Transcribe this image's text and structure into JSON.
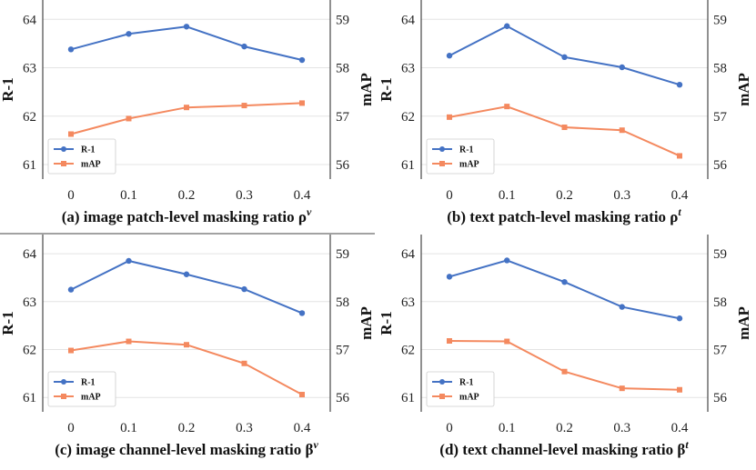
{
  "colors": {
    "r1": "#4472c4",
    "map": "#f4895f",
    "grid": "#e4e4e4",
    "frame": "#222222"
  },
  "chart_data": [
    {
      "type": "line",
      "caption": "(a) image patch-level masking ratio ρ",
      "caption_sup": "v",
      "xlabel": "",
      "y1label": "R-1",
      "y2label": "mAP",
      "categories": [
        "0",
        "0.1",
        "0.2",
        "0.3",
        "0.4"
      ],
      "y1lim": [
        60.7,
        64.4
      ],
      "y2lim": [
        55.7,
        59.4
      ],
      "y1ticks": [
        "61",
        "62",
        "63",
        "64"
      ],
      "y2ticks": [
        "56",
        "57",
        "58",
        "59"
      ],
      "legend": "bottom-left",
      "series": [
        {
          "name": "R-1",
          "axis": "left",
          "values": [
            63.38,
            63.7,
            63.85,
            63.44,
            63.16
          ]
        },
        {
          "name": "mAP",
          "axis": "right",
          "values": [
            56.63,
            56.95,
            57.18,
            57.22,
            57.27
          ]
        }
      ]
    },
    {
      "type": "line",
      "caption": "(b) text patch-level masking ratio ρ",
      "caption_sup": "t",
      "xlabel": "",
      "y1label": "R-1",
      "y2label": "mAP",
      "categories": [
        "0",
        "0.1",
        "0.2",
        "0.3",
        "0.4"
      ],
      "y1lim": [
        60.7,
        64.4
      ],
      "y2lim": [
        55.7,
        59.4
      ],
      "y1ticks": [
        "61",
        "62",
        "63",
        "64"
      ],
      "y2ticks": [
        "56",
        "57",
        "58",
        "59"
      ],
      "legend": "bottom-left",
      "series": [
        {
          "name": "R-1",
          "axis": "left",
          "values": [
            63.25,
            63.86,
            63.22,
            63.01,
            62.65
          ]
        },
        {
          "name": "mAP",
          "axis": "right",
          "values": [
            56.98,
            57.2,
            56.77,
            56.71,
            56.18
          ]
        }
      ]
    },
    {
      "type": "line",
      "caption": "(c) image channel-level masking ratio β",
      "caption_sup": "v",
      "xlabel": "",
      "y1label": "R-1",
      "y2label": "mAP",
      "categories": [
        "0",
        "0.1",
        "0.2",
        "0.3",
        "0.4"
      ],
      "y1lim": [
        60.7,
        64.4
      ],
      "y2lim": [
        55.7,
        59.4
      ],
      "y1ticks": [
        "61",
        "62",
        "63",
        "64"
      ],
      "y2ticks": [
        "56",
        "57",
        "58",
        "59"
      ],
      "legend": "bottom-left",
      "series": [
        {
          "name": "R-1",
          "axis": "left",
          "values": [
            63.25,
            63.85,
            63.57,
            63.26,
            62.76
          ]
        },
        {
          "name": "mAP",
          "axis": "right",
          "values": [
            56.98,
            57.17,
            57.1,
            56.71,
            56.06
          ]
        }
      ]
    },
    {
      "type": "line",
      "caption": "(d) text channel-level masking ratio β",
      "caption_sup": "t",
      "xlabel": "",
      "y1label": "R-1",
      "y2label": "mAP",
      "categories": [
        "0",
        "0.1",
        "0.2",
        "0.3",
        "0.4"
      ],
      "y1lim": [
        60.7,
        64.4
      ],
      "y2lim": [
        55.7,
        59.4
      ],
      "y1ticks": [
        "61",
        "62",
        "63",
        "64"
      ],
      "y2ticks": [
        "56",
        "57",
        "58",
        "59"
      ],
      "legend": "bottom-left",
      "series": [
        {
          "name": "R-1",
          "axis": "left",
          "values": [
            63.52,
            63.86,
            63.41,
            62.89,
            62.65
          ]
        },
        {
          "name": "mAP",
          "axis": "right",
          "values": [
            57.18,
            57.17,
            56.54,
            56.19,
            56.16
          ]
        }
      ]
    }
  ]
}
